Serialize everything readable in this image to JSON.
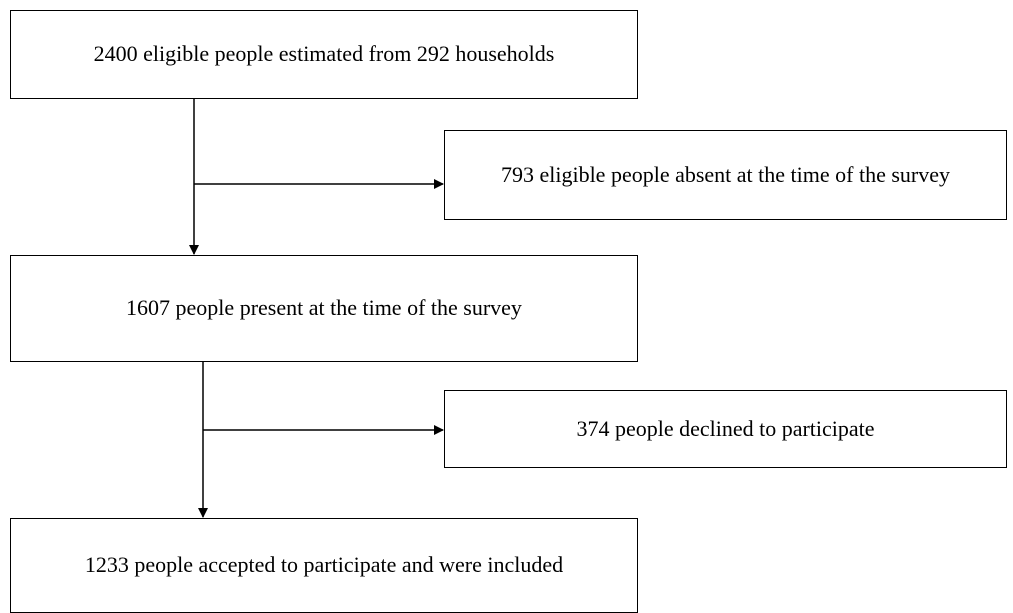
{
  "flowchart": {
    "boxes": {
      "eligible": "2400 eligible people estimated from 292 households",
      "absent": "793 eligible people absent at the time of the survey",
      "present": "1607 people present at the time of the survey",
      "declined": "374 people declined to participate",
      "included": "1233 people accepted to participate and were included"
    },
    "colors": {
      "line": "#000000",
      "box_border": "#000000",
      "background": "#ffffff"
    }
  }
}
